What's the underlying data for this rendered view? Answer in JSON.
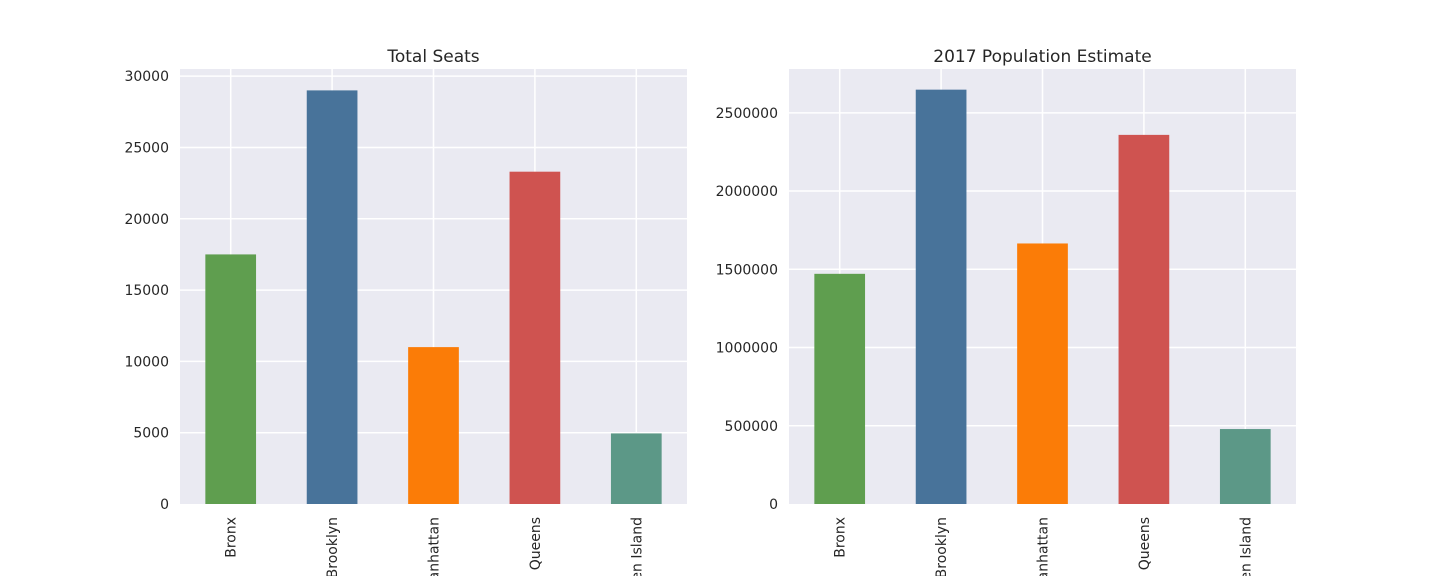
{
  "chart_data": [
    {
      "type": "bar",
      "title": "Total Seats",
      "xlabel": "",
      "ylabel": "",
      "categories": [
        "Bronx",
        "Brooklyn",
        "Manhattan",
        "Queens",
        "Staten Island"
      ],
      "values": [
        17500,
        29000,
        11000,
        23300,
        4950
      ],
      "colors": [
        "#5f9e4f",
        "#48739a",
        "#fb7c07",
        "#cf5350",
        "#5c9887"
      ],
      "ylim": [
        0,
        30500
      ],
      "yticks": [
        0,
        5000,
        10000,
        15000,
        20000,
        25000,
        30000
      ],
      "grid": true
    },
    {
      "type": "bar",
      "title": "2017 Population Estimate",
      "xlabel": "",
      "ylabel": "",
      "categories": [
        "Bronx",
        "Brooklyn",
        "Manhattan",
        "Queens",
        "Staten Island"
      ],
      "values": [
        1471000,
        2648000,
        1665000,
        2359000,
        479000
      ],
      "colors": [
        "#5f9e4f",
        "#48739a",
        "#fb7c07",
        "#cf5350",
        "#5c9887"
      ],
      "ylim": [
        0,
        2780000
      ],
      "yticks": [
        0,
        500000,
        1000000,
        1500000,
        2000000,
        2500000
      ],
      "grid": true
    }
  ]
}
